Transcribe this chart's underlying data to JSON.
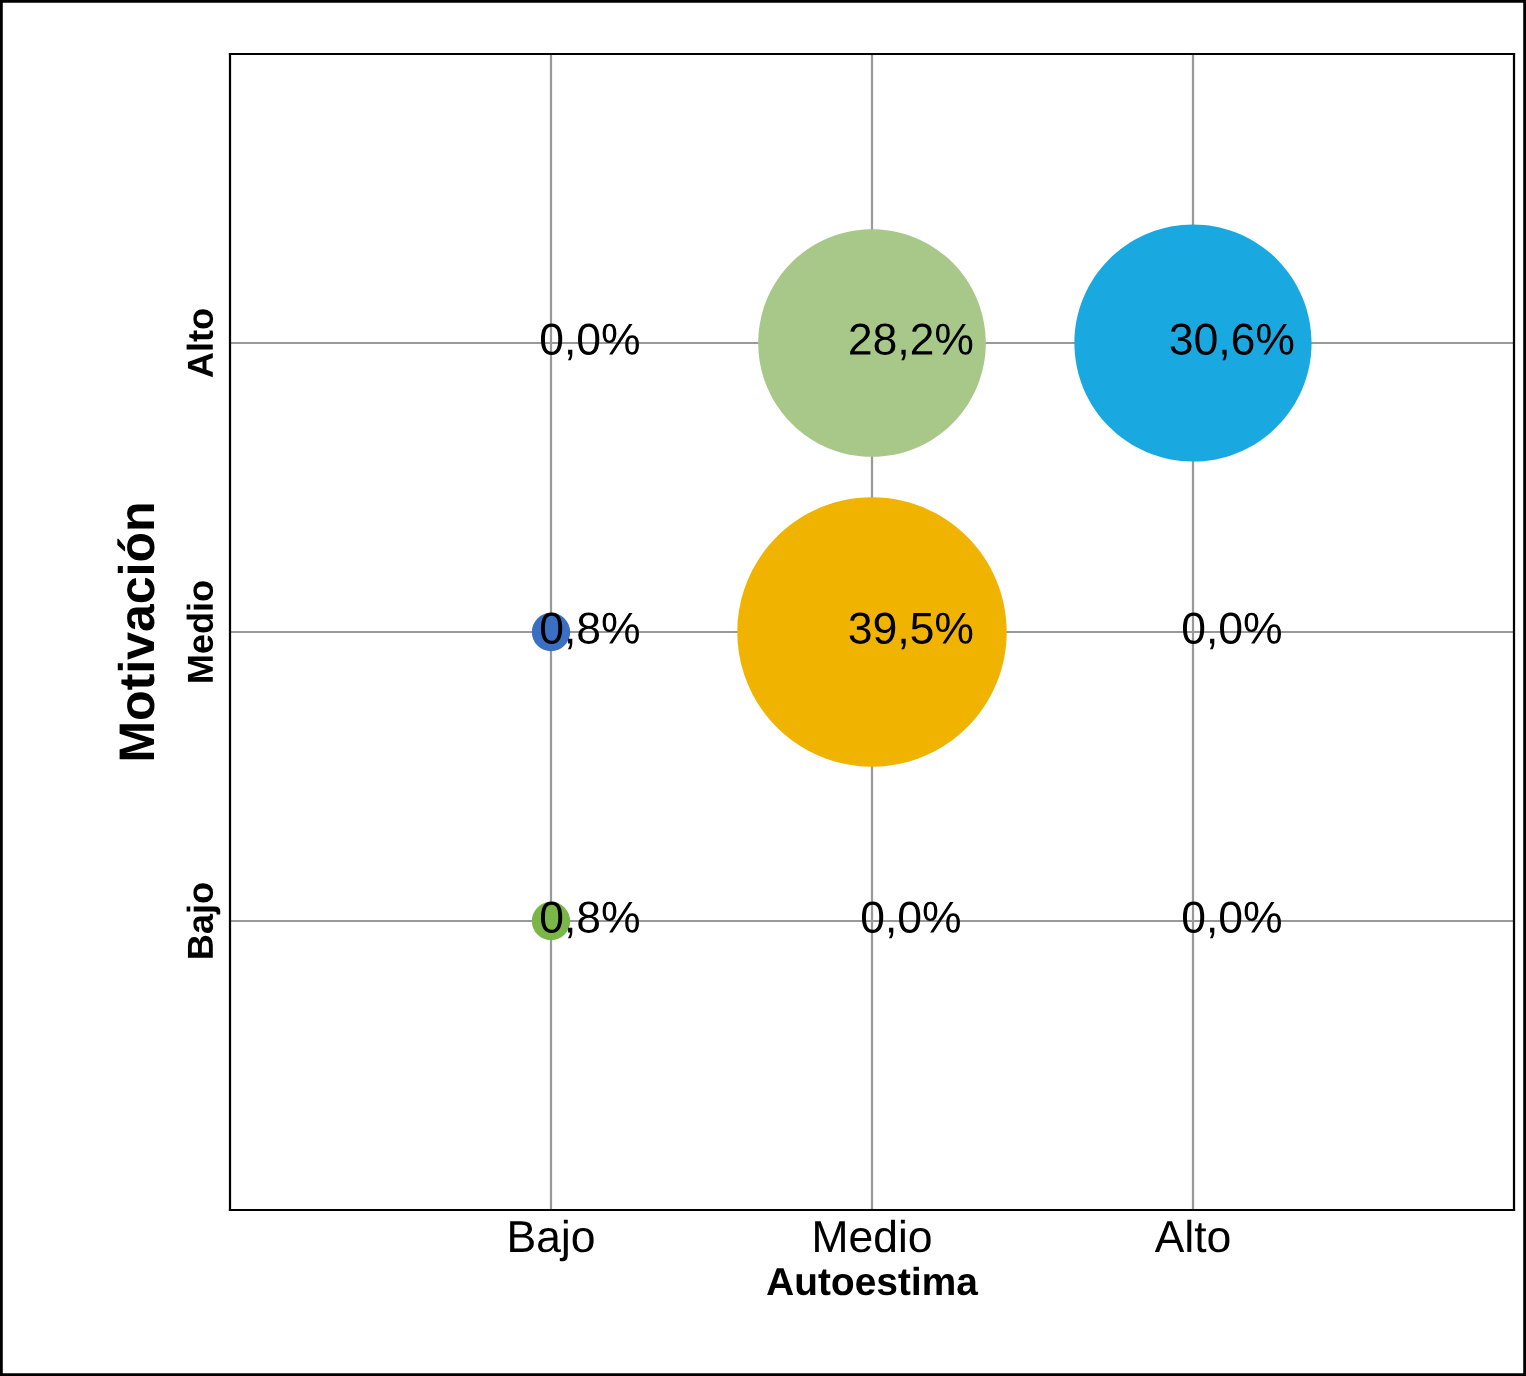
{
  "chart_data": {
    "type": "other",
    "xlabel": "Autoestima",
    "ylabel": "Motivación",
    "categories": [
      "Bajo",
      "Medio",
      "Alto"
    ],
    "y_categories": [
      "Alto",
      "Medio",
      "Bajo"
    ],
    "series": [
      {
        "values": [
          0.0,
          28.2,
          30.6
        ],
        "colors": [
          null,
          "#a8c88a",
          "#1aa8e0"
        ],
        "value_labels": [
          "0,0%",
          "28,2%",
          "30,6%"
        ]
      },
      {
        "values": [
          0.8,
          39.5,
          0.0
        ],
        "colors": [
          "#3a6fc4",
          "#f0b400",
          null
        ],
        "value_labels": [
          "0,8%",
          "39,5%",
          "0,0%"
        ]
      },
      {
        "values": [
          0.8,
          0.0,
          0.0
        ],
        "colors": [
          "#7ab648",
          null,
          null
        ],
        "value_labels": [
          "0,8%",
          "0,0%",
          "0,0%"
        ]
      }
    ]
  }
}
